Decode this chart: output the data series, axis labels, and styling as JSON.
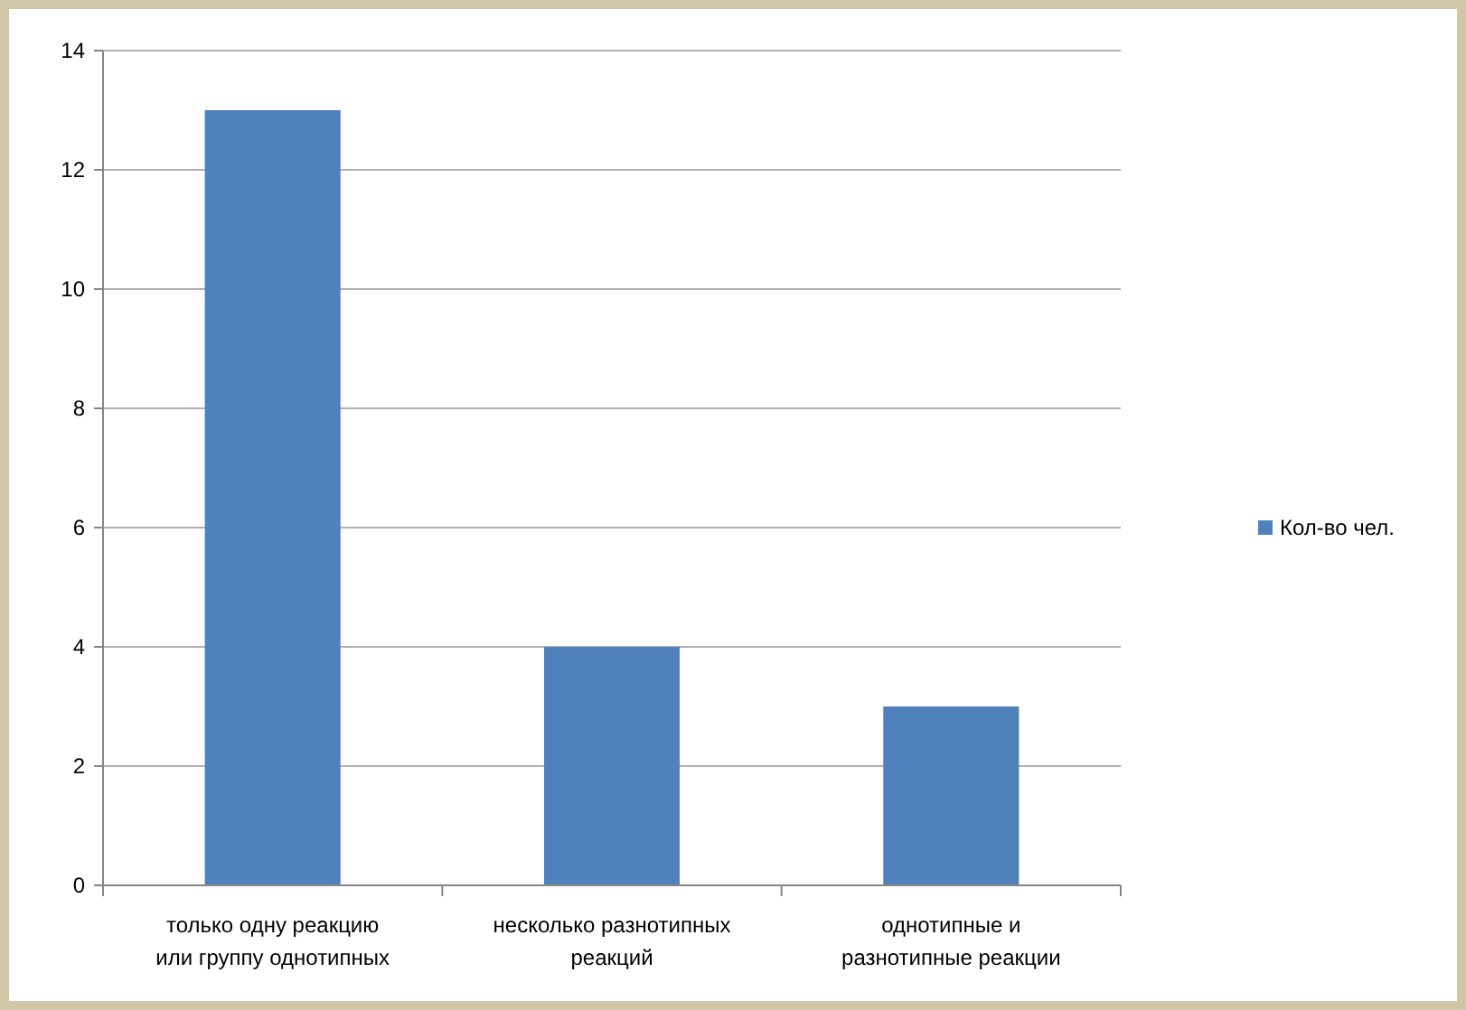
{
  "chart_data": {
    "type": "bar",
    "categories": [
      "только одну реакцию\nили группу однотипных",
      "несколько разнотипных\nреакций",
      "однотипные и\nразнотипные реакции"
    ],
    "series": [
      {
        "name": "Кол-во чел.",
        "color": "#4f81bd",
        "values": [
          13,
          4,
          3
        ]
      }
    ],
    "ylim": [
      0,
      14
    ],
    "yticks": [
      0,
      2,
      4,
      6,
      8,
      10,
      12,
      14
    ],
    "grid": "y",
    "legend": "right"
  }
}
